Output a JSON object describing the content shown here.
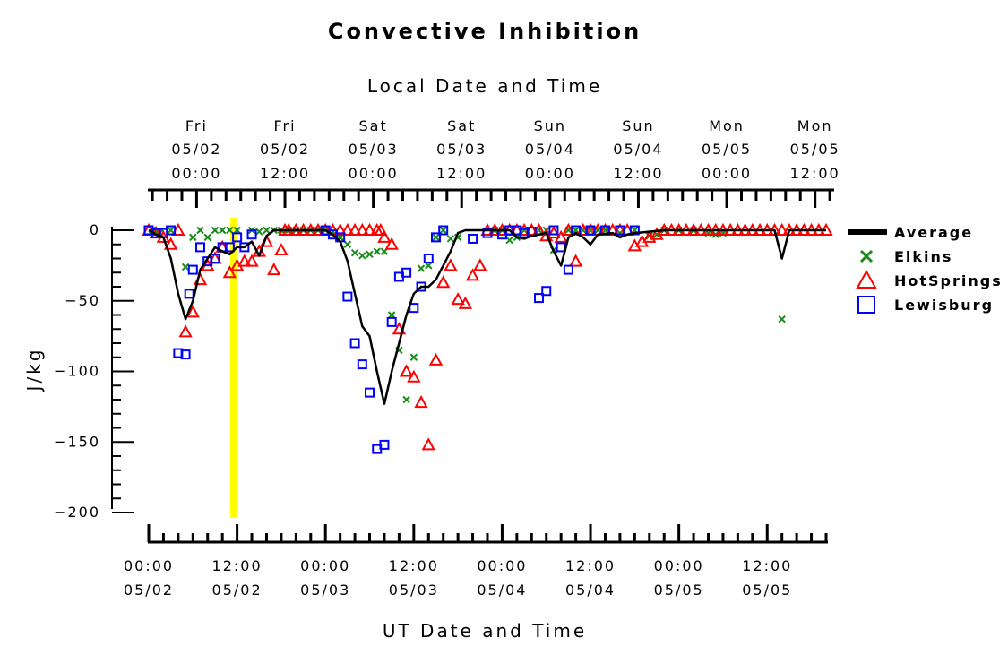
{
  "chart_data": {
    "type": "scatter",
    "title": "Convective Inhibition",
    "top_axis_title": "Local Date and Time",
    "bottom_axis_title": "UT Date and Time",
    "ylabel": "J/kg",
    "ylim": [
      -210,
      5
    ],
    "xlim": [
      0,
      92
    ],
    "yticks": [
      {
        "v": 0,
        "label": "0"
      },
      {
        "v": -50,
        "label": "−50"
      },
      {
        "v": -100,
        "label": "−100"
      },
      {
        "v": -150,
        "label": "−150"
      },
      {
        "v": -200,
        "label": "−200"
      }
    ],
    "bottom_ticks": [
      {
        "x": 0,
        "l1": "00:00",
        "l2": "05/02"
      },
      {
        "x": 12,
        "l1": "12:00",
        "l2": "05/02"
      },
      {
        "x": 24,
        "l1": "00:00",
        "l2": "05/03"
      },
      {
        "x": 36,
        "l1": "12:00",
        "l2": "05/03"
      },
      {
        "x": 48,
        "l1": "00:00",
        "l2": "05/04"
      },
      {
        "x": 60,
        "l1": "12:00",
        "l2": "05/04"
      },
      {
        "x": 72,
        "l1": "00:00",
        "l2": "05/05"
      },
      {
        "x": 84,
        "l1": "12:00",
        "l2": "05/05"
      }
    ],
    "top_ticks": [
      {
        "x": 6.5,
        "l0": "Fri",
        "l1": "05/02",
        "l2": "00:00"
      },
      {
        "x": 18.5,
        "l0": "Fri",
        "l1": "05/02",
        "l2": "12:00"
      },
      {
        "x": 30.5,
        "l0": "Sat",
        "l1": "05/03",
        "l2": "00:00"
      },
      {
        "x": 42.5,
        "l0": "Sat",
        "l1": "05/03",
        "l2": "12:00"
      },
      {
        "x": 54.5,
        "l0": "Sun",
        "l1": "05/04",
        "l2": "00:00"
      },
      {
        "x": 66.5,
        "l0": "Sun",
        "l1": "05/04",
        "l2": "12:00"
      },
      {
        "x": 78.5,
        "l0": "Mon",
        "l1": "05/05",
        "l2": "00:00"
      },
      {
        "x": 90.5,
        "l0": "Mon",
        "l1": "05/05",
        "l2": "12:00"
      }
    ],
    "highlight_x": 11.5,
    "legend_position": "right",
    "colors": {
      "average": "#000000",
      "elkins": "#1a8a1a",
      "hotsprings": "#ff0000",
      "lewisburg": "#0000ff",
      "highlight": "#ffff00"
    },
    "series": [
      {
        "name": "Average",
        "marker": "line",
        "points": [
          [
            0,
            0
          ],
          [
            1,
            -3
          ],
          [
            2,
            -5
          ],
          [
            3,
            -20
          ],
          [
            4,
            -45
          ],
          [
            5,
            -63
          ],
          [
            6,
            -50
          ],
          [
            7,
            -28
          ],
          [
            8,
            -20
          ],
          [
            9,
            -12
          ],
          [
            10,
            -15
          ],
          [
            11,
            -17
          ],
          [
            12,
            -12
          ],
          [
            13,
            -12
          ],
          [
            14,
            -8
          ],
          [
            15,
            -18
          ],
          [
            16,
            -4
          ],
          [
            17,
            0
          ],
          [
            24,
            0
          ],
          [
            25,
            -3
          ],
          [
            26,
            -8
          ],
          [
            27,
            -22
          ],
          [
            28,
            -45
          ],
          [
            29,
            -68
          ],
          [
            30,
            -75
          ],
          [
            31,
            -100
          ],
          [
            32,
            -123
          ],
          [
            33,
            -100
          ],
          [
            34,
            -80
          ],
          [
            35,
            -60
          ],
          [
            36,
            -45
          ],
          [
            37,
            -40
          ],
          [
            38,
            -40
          ],
          [
            39,
            -35
          ],
          [
            40,
            -25
          ],
          [
            41,
            -15
          ],
          [
            42,
            -2
          ],
          [
            43,
            0
          ],
          [
            49,
            0
          ],
          [
            50,
            -5
          ],
          [
            51,
            -6
          ],
          [
            52,
            -4
          ],
          [
            54,
            -2
          ],
          [
            55,
            -15
          ],
          [
            56,
            -25
          ],
          [
            57,
            -5
          ],
          [
            58,
            -2
          ],
          [
            59,
            -5
          ],
          [
            60,
            -10
          ],
          [
            61,
            -3
          ],
          [
            63,
            -2
          ],
          [
            64,
            -5
          ],
          [
            65,
            -3
          ],
          [
            66,
            -2
          ],
          [
            68,
            -1
          ],
          [
            70,
            0
          ],
          [
            85,
            0
          ],
          [
            86,
            -20
          ],
          [
            87,
            0
          ],
          [
            92,
            0
          ]
        ]
      },
      {
        "name": "Elkins",
        "marker": "x",
        "points": [
          [
            0.5,
            0
          ],
          [
            1,
            -1
          ],
          [
            1.5,
            -2
          ],
          [
            3,
            0
          ],
          [
            5,
            -26
          ],
          [
            6,
            -5
          ],
          [
            7,
            0
          ],
          [
            8,
            -5
          ],
          [
            9,
            0
          ],
          [
            10,
            0
          ],
          [
            11,
            0
          ],
          [
            12,
            0
          ],
          [
            14,
            0
          ],
          [
            15,
            -1
          ],
          [
            16,
            0
          ],
          [
            17,
            0
          ],
          [
            18,
            0
          ],
          [
            19,
            0
          ],
          [
            20,
            0
          ],
          [
            21,
            0
          ],
          [
            22,
            0
          ],
          [
            23,
            0
          ],
          [
            24,
            0
          ],
          [
            25,
            -1
          ],
          [
            26,
            -5
          ],
          [
            27,
            -10
          ],
          [
            28,
            -16
          ],
          [
            29,
            -18
          ],
          [
            30,
            -17
          ],
          [
            31,
            -15
          ],
          [
            32,
            -15
          ],
          [
            33,
            -60
          ],
          [
            34,
            -85
          ],
          [
            35,
            -120
          ],
          [
            36,
            -90
          ],
          [
            37,
            -27
          ],
          [
            38,
            -25
          ],
          [
            39,
            -5
          ],
          [
            40,
            0
          ],
          [
            41,
            -6
          ],
          [
            42,
            -5
          ],
          [
            47,
            0
          ],
          [
            48,
            0
          ],
          [
            49,
            -7
          ],
          [
            50,
            -5
          ],
          [
            51,
            0
          ],
          [
            53,
            0
          ],
          [
            54,
            0
          ],
          [
            55,
            -14
          ],
          [
            57,
            0
          ],
          [
            58,
            0
          ],
          [
            59,
            0
          ],
          [
            60,
            0
          ],
          [
            61,
            0
          ],
          [
            62,
            0
          ],
          [
            64,
            -2
          ],
          [
            66,
            0
          ],
          [
            68,
            -4
          ],
          [
            69,
            -3
          ],
          [
            70,
            0
          ],
          [
            72,
            0
          ],
          [
            74,
            0
          ],
          [
            76,
            -2
          ],
          [
            77,
            -3
          ],
          [
            78,
            -2
          ],
          [
            86,
            -63
          ]
        ]
      },
      {
        "name": "HotSprings",
        "marker": "triangle",
        "points": [
          [
            0,
            0
          ],
          [
            1,
            -2
          ],
          [
            2,
            -5
          ],
          [
            3,
            -10
          ],
          [
            4,
            0
          ],
          [
            5,
            -72
          ],
          [
            6,
            -58
          ],
          [
            7,
            -35
          ],
          [
            8,
            -25
          ],
          [
            9,
            -20
          ],
          [
            10,
            -12
          ],
          [
            11,
            -30
          ],
          [
            12,
            -25
          ],
          [
            13,
            -22
          ],
          [
            14,
            -22
          ],
          [
            15,
            -15
          ],
          [
            16,
            -8
          ],
          [
            17,
            -28
          ],
          [
            18,
            -14
          ],
          [
            18.5,
            0
          ],
          [
            19,
            0
          ],
          [
            20,
            0
          ],
          [
            21,
            0
          ],
          [
            22,
            0
          ],
          [
            23,
            0
          ],
          [
            24,
            0
          ],
          [
            25,
            0
          ],
          [
            26,
            0
          ],
          [
            27,
            0
          ],
          [
            28,
            0
          ],
          [
            29,
            0
          ],
          [
            30,
            0
          ],
          [
            31,
            0
          ],
          [
            31.5,
            0
          ],
          [
            32,
            -5
          ],
          [
            33,
            -10
          ],
          [
            34,
            -70
          ],
          [
            35,
            -100
          ],
          [
            36,
            -104
          ],
          [
            37,
            -122
          ],
          [
            38,
            -152
          ],
          [
            39,
            -92
          ],
          [
            40,
            -37
          ],
          [
            41,
            -25
          ],
          [
            42,
            -49
          ],
          [
            43,
            -52
          ],
          [
            44,
            -32
          ],
          [
            45,
            -25
          ],
          [
            46,
            0
          ],
          [
            47,
            0
          ],
          [
            48,
            0
          ],
          [
            49,
            0
          ],
          [
            50,
            0
          ],
          [
            51,
            0
          ],
          [
            52,
            0
          ],
          [
            53,
            0
          ],
          [
            54,
            -4
          ],
          [
            55,
            -2
          ],
          [
            56,
            -5
          ],
          [
            57,
            0
          ],
          [
            58,
            -22
          ],
          [
            59,
            0
          ],
          [
            60,
            0
          ],
          [
            61,
            0
          ],
          [
            62,
            0
          ],
          [
            63,
            0
          ],
          [
            64,
            0
          ],
          [
            65,
            0
          ],
          [
            66,
            -11
          ],
          [
            67,
            -8
          ],
          [
            68,
            -5
          ],
          [
            69,
            -3
          ],
          [
            70,
            0
          ],
          [
            71,
            0
          ],
          [
            72,
            0
          ],
          [
            73,
            0
          ],
          [
            74,
            0
          ],
          [
            75,
            0
          ],
          [
            76,
            0
          ],
          [
            77,
            0
          ],
          [
            78,
            0
          ],
          [
            79,
            0
          ],
          [
            80,
            0
          ],
          [
            81,
            0
          ],
          [
            82,
            0
          ],
          [
            83,
            0
          ],
          [
            84,
            0
          ],
          [
            85,
            0
          ],
          [
            86,
            0
          ],
          [
            87,
            0
          ],
          [
            88,
            0
          ],
          [
            89,
            0
          ],
          [
            90,
            0
          ],
          [
            91,
            0
          ],
          [
            92,
            0
          ]
        ]
      },
      {
        "name": "Lewisburg",
        "marker": "square",
        "points": [
          [
            0,
            0
          ],
          [
            1,
            -2
          ],
          [
            2,
            -2
          ],
          [
            3,
            0
          ],
          [
            4,
            -87
          ],
          [
            5,
            -88
          ],
          [
            5.5,
            -45
          ],
          [
            6,
            -28
          ],
          [
            7,
            -12
          ],
          [
            8,
            -22
          ],
          [
            9,
            -20
          ],
          [
            10,
            -12
          ],
          [
            11,
            -12
          ],
          [
            12,
            -5
          ],
          [
            13,
            -12
          ],
          [
            14,
            -3
          ],
          [
            24,
            0
          ],
          [
            25,
            -3
          ],
          [
            26,
            -5
          ],
          [
            27,
            -47
          ],
          [
            28,
            -80
          ],
          [
            29,
            -95
          ],
          [
            30,
            -115
          ],
          [
            31,
            -155
          ],
          [
            32,
            -152
          ],
          [
            33,
            -65
          ],
          [
            34,
            -33
          ],
          [
            35,
            -30
          ],
          [
            36,
            -55
          ],
          [
            37,
            -40
          ],
          [
            38,
            -20
          ],
          [
            39,
            -5
          ],
          [
            40,
            0
          ],
          [
            44,
            -6
          ],
          [
            46,
            -2
          ],
          [
            48,
            -3
          ],
          [
            49,
            0
          ],
          [
            50,
            0
          ],
          [
            51,
            -2
          ],
          [
            52,
            -1
          ],
          [
            53,
            -48
          ],
          [
            54,
            -43
          ],
          [
            55,
            0
          ],
          [
            56,
            -12
          ],
          [
            57,
            -28
          ],
          [
            58,
            0
          ],
          [
            60,
            0
          ],
          [
            62,
            0
          ],
          [
            64,
            0
          ],
          [
            66,
            0
          ]
        ]
      }
    ]
  }
}
